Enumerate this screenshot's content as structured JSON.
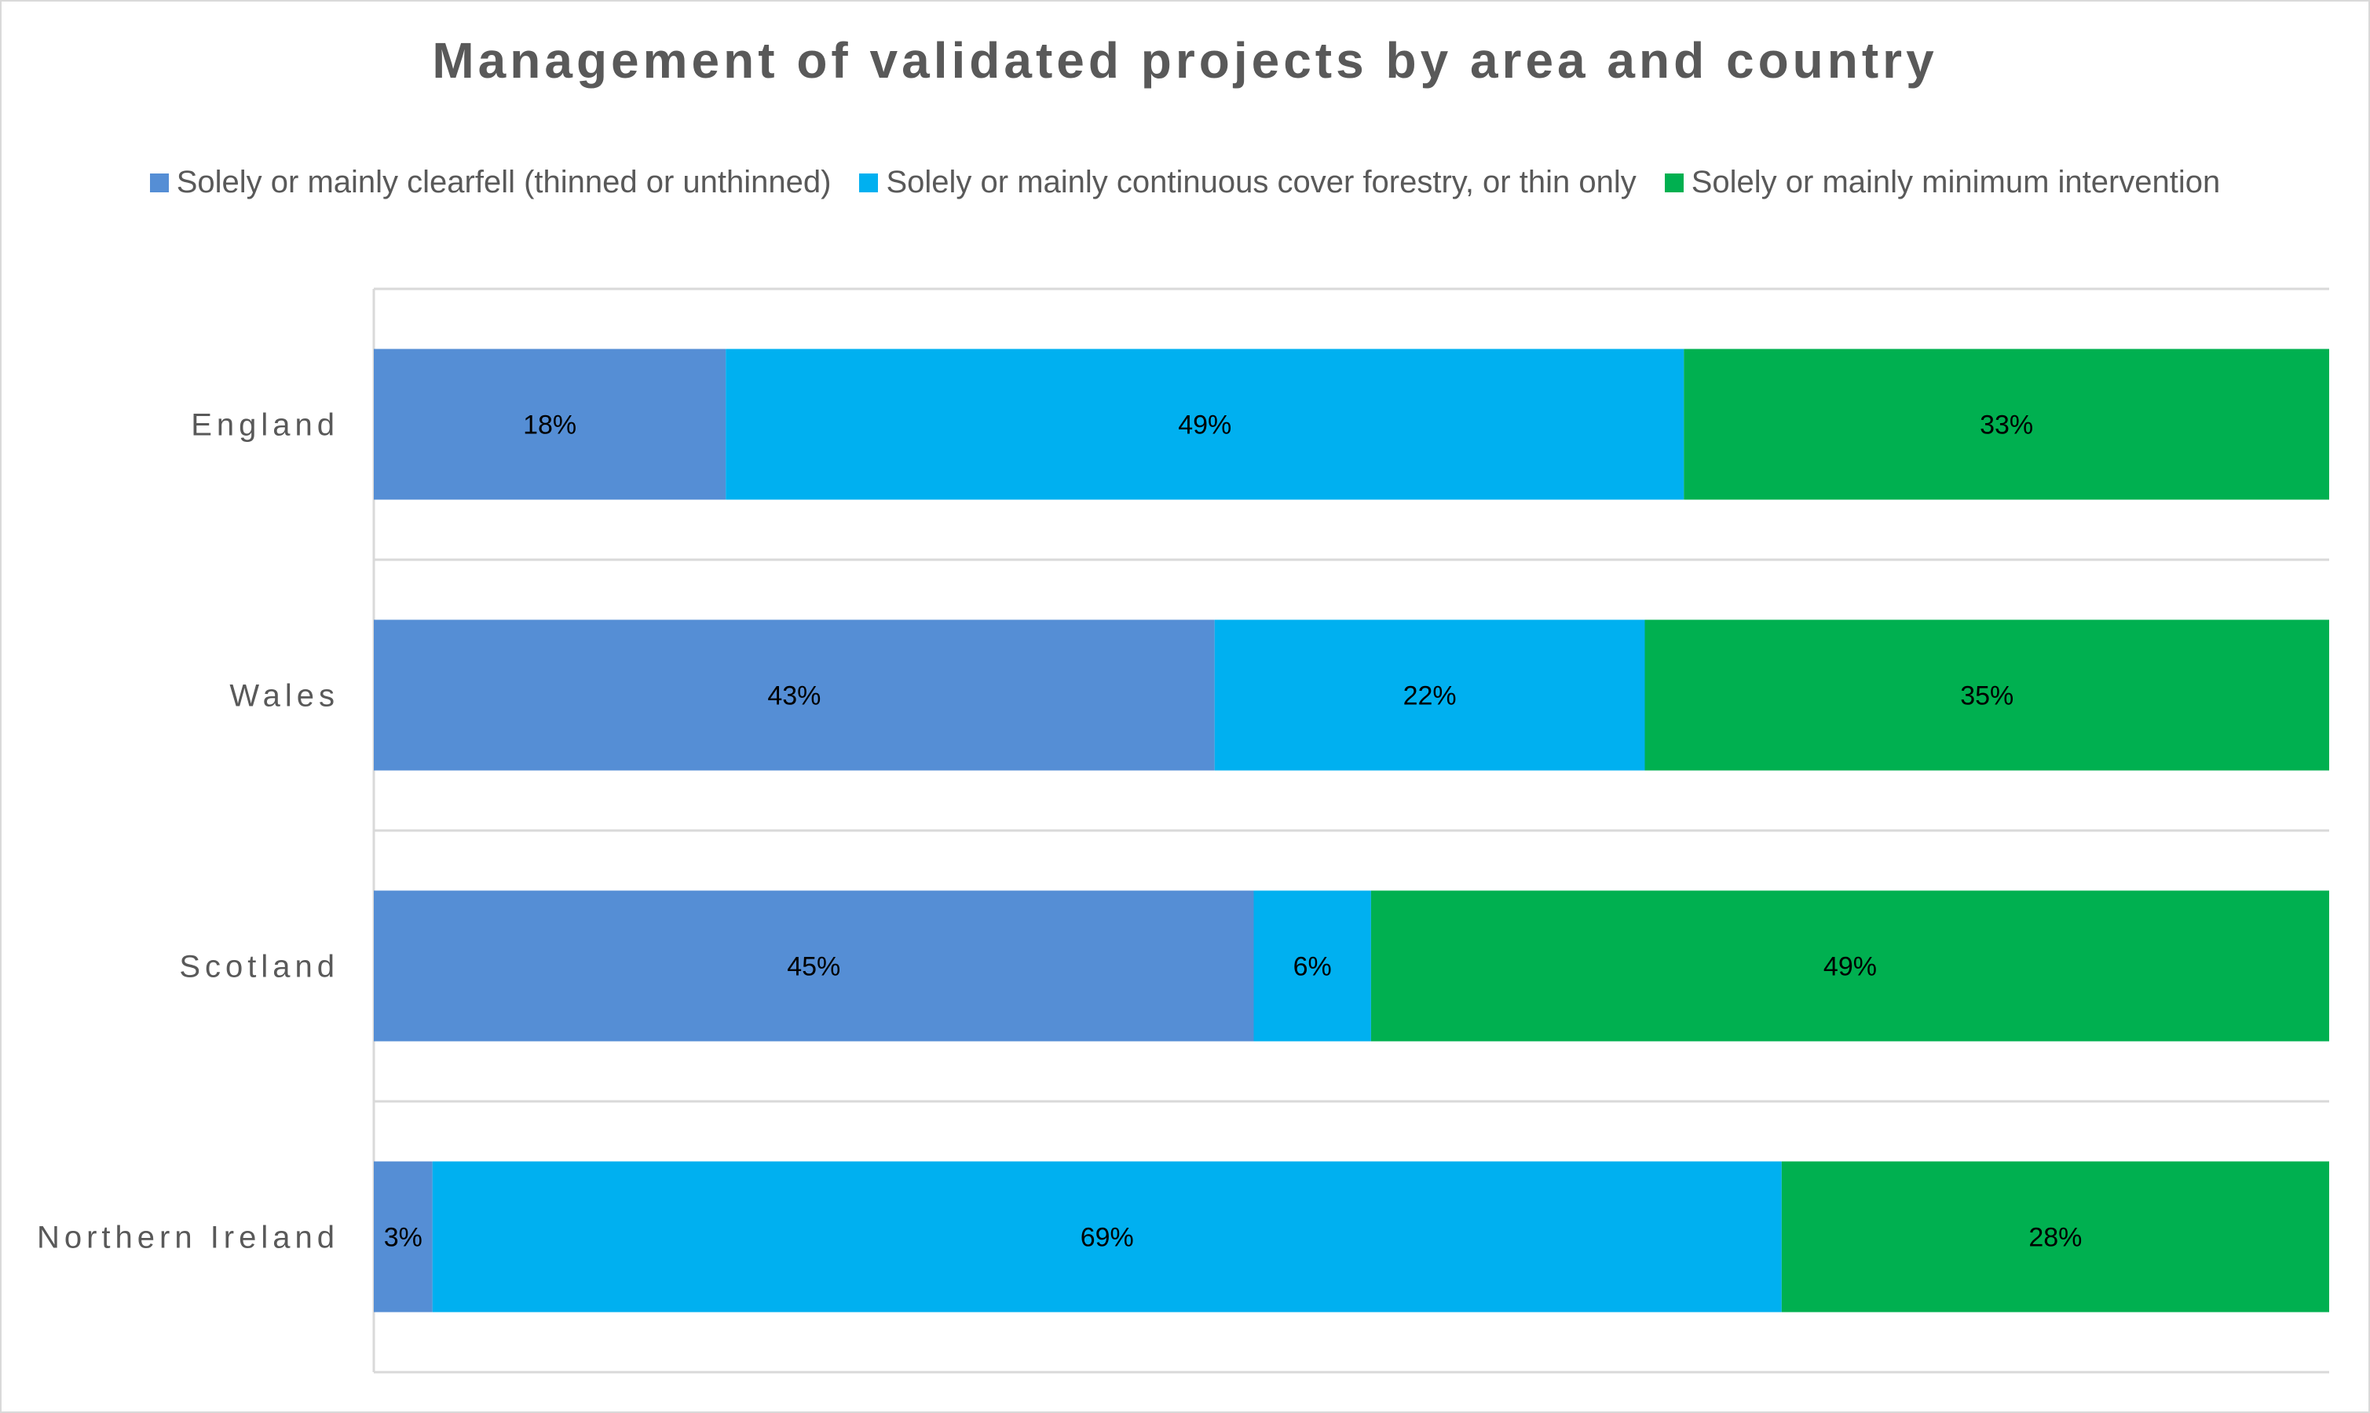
{
  "chart_data": {
    "type": "bar",
    "orientation": "horizontal",
    "stacked": "percent",
    "title": "Management of validated projects by area and country",
    "categories": [
      "England",
      "Wales",
      "Scotland",
      "Northern Ireland"
    ],
    "series": [
      {
        "name": "Solely or mainly clearfell (thinned or unthinned)",
        "color": "#558ed5",
        "values": [
          18,
          43,
          45,
          3
        ],
        "labels": [
          "18%",
          "43%",
          "45%",
          "3%"
        ]
      },
      {
        "name": "Solely or mainly continuous cover forestry, or thin only",
        "color": "#00b0f0",
        "values": [
          49,
          22,
          6,
          69
        ],
        "labels": [
          "49%",
          "22%",
          "6%",
          "69%"
        ]
      },
      {
        "name": "Solely or mainly minimum intervention",
        "color": "#00b050",
        "values": [
          33,
          35,
          49,
          28
        ],
        "labels": [
          "33%",
          "35%",
          "49%",
          "28%"
        ]
      }
    ],
    "xlim": [
      0,
      100
    ],
    "legend_position": "top",
    "grid": "horizontal category separators",
    "xaxis_visible": false
  }
}
